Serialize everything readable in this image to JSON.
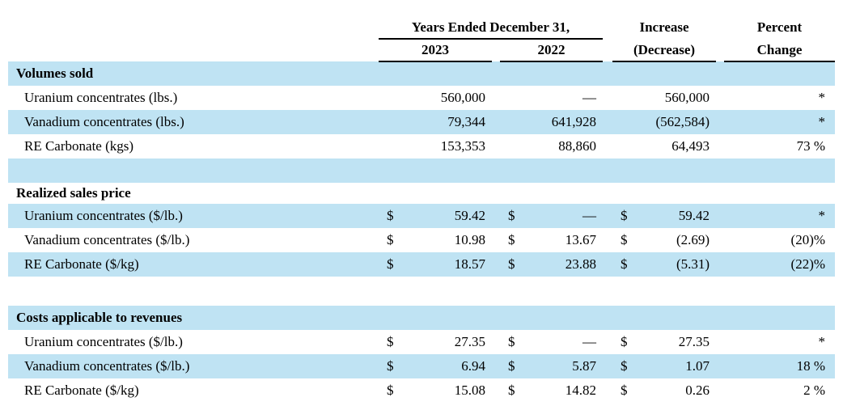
{
  "table": {
    "colors": {
      "row_highlight": "#bfe3f3",
      "rule": "#000000",
      "text": "#000000"
    },
    "header": {
      "years_group": "Years Ended December 31,",
      "year_2023": "2023",
      "year_2022": "2022",
      "increase_top": "Increase",
      "increase_bottom": "(Decrease)",
      "percent_top": "Percent",
      "percent_bottom": "Change"
    },
    "rows": [
      {
        "label": "Volumes sold"
      },
      {
        "label": "Uranium concentrates (lbs.)",
        "v2023": "560,000",
        "v2022": "—",
        "inc": "560,000",
        "pct": "*"
      },
      {
        "label": "Vanadium concentrates (lbs.)",
        "v2023": "79,344",
        "v2022": "641,928",
        "inc": "(562,584)",
        "pct": "*"
      },
      {
        "label": "RE Carbonate (kgs)",
        "v2023": "153,353",
        "v2022": "88,860",
        "inc": "64,493",
        "pct": "73 %"
      },
      {
        "label": ""
      },
      {
        "label": "Realized sales price"
      },
      {
        "label": "Uranium concentrates ($/lb.)",
        "d2023": "$",
        "v2023": "59.42",
        "d2022": "$",
        "v2022": "—",
        "dinc": "$",
        "inc": "59.42",
        "pct": "*"
      },
      {
        "label": "Vanadium concentrates ($/lb.)",
        "d2023": "$",
        "v2023": "10.98",
        "d2022": "$",
        "v2022": "13.67",
        "dinc": "$",
        "inc": "(2.69)",
        "pct": "(20)%"
      },
      {
        "label": "RE Carbonate ($/kg)",
        "d2023": "$",
        "v2023": "18.57",
        "d2022": "$",
        "v2022": "23.88",
        "dinc": "$",
        "inc": "(5.31)",
        "pct": "(22)%"
      },
      {
        "label": ""
      },
      {
        "label": "Costs applicable to revenues"
      },
      {
        "label": "Uranium concentrates ($/lb.)",
        "d2023": "$",
        "v2023": "27.35",
        "d2022": "$",
        "v2022": "—",
        "dinc": "$",
        "inc": "27.35",
        "pct": "*"
      },
      {
        "label": "Vanadium concentrates ($/lb.)",
        "d2023": "$",
        "v2023": "6.94",
        "d2022": "$",
        "v2022": "5.87",
        "dinc": "$",
        "inc": "1.07",
        "pct": "18 %"
      },
      {
        "label": "RE Carbonate ($/kg)",
        "d2023": "$",
        "v2023": "15.08",
        "d2022": "$",
        "v2022": "14.82",
        "dinc": "$",
        "inc": "0.26",
        "pct": "2 %"
      }
    ]
  }
}
